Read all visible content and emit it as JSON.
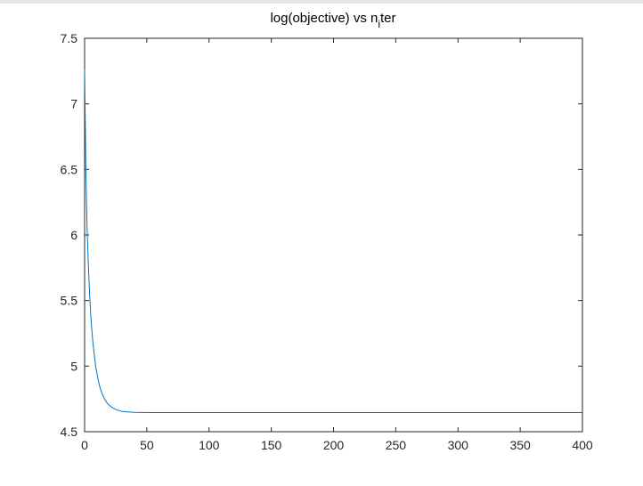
{
  "chart_data": {
    "type": "line",
    "title": "log(objective) vs n",
    "title_subscript": "i",
    "title_suffix": "ter",
    "xlabel": "",
    "ylabel": "",
    "xlim": [
      0,
      400
    ],
    "ylim": [
      4.5,
      7.5
    ],
    "x_ticks": [
      0,
      50,
      100,
      150,
      200,
      250,
      300,
      350,
      400
    ],
    "x_tick_labels": [
      "0",
      "50",
      "100",
      "150",
      "200",
      "250",
      "300",
      "350",
      "400"
    ],
    "y_ticks": [
      4.5,
      5,
      5.5,
      6,
      6.5,
      7,
      7.5
    ],
    "y_tick_labels": [
      "4.5",
      "5",
      "5.5",
      "6",
      "6.5",
      "7",
      "7.5"
    ],
    "grid": false,
    "series": [
      {
        "color": "#0072bd",
        "x": [
          0,
          1,
          2,
          3,
          4,
          5,
          6,
          7,
          8,
          9,
          10,
          11,
          12,
          13,
          14,
          15,
          16,
          17,
          18,
          19,
          20,
          22,
          24,
          26,
          28,
          30,
          33,
          36,
          40,
          45,
          50,
          60,
          80,
          100,
          150,
          200,
          250,
          300,
          350,
          400
        ],
        "y": [
          7.26,
          6.5,
          6.05,
          5.78,
          5.55,
          5.38,
          5.25,
          5.15,
          5.07,
          4.99,
          4.94,
          4.89,
          4.85,
          4.82,
          4.79,
          4.77,
          4.75,
          4.735,
          4.72,
          4.71,
          4.7,
          4.685,
          4.675,
          4.665,
          4.66,
          4.655,
          4.652,
          4.65,
          4.648,
          4.647,
          4.646,
          4.646,
          4.646,
          4.646,
          4.646,
          4.646,
          4.646,
          4.646,
          4.646,
          4.646
        ]
      }
    ]
  }
}
